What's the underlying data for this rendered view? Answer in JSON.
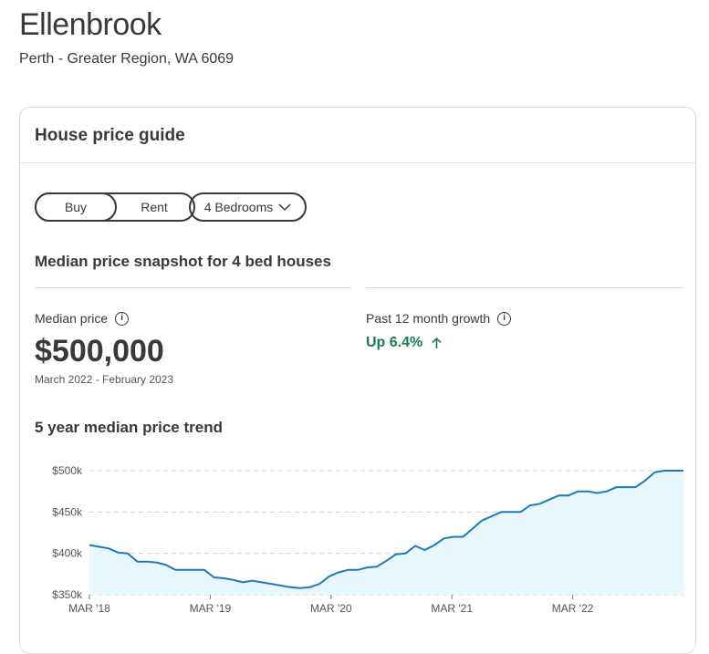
{
  "suburb": {
    "name": "Ellenbrook",
    "region": "Perth - Greater Region, WA 6069"
  },
  "card": {
    "title": "House price guide",
    "toggle": {
      "buy": "Buy",
      "rent": "Rent",
      "selected": "Buy"
    },
    "bedrooms_dropdown": "4 Bedrooms",
    "snapshot_title": "Median price snapshot for 4 bed houses",
    "median": {
      "label": "Median price",
      "value": "$500,000",
      "period": "March 2022 - February 2023"
    },
    "growth": {
      "label": "Past 12 month growth",
      "value": "Up 6.4%"
    },
    "trend_title": "5 year median price trend"
  },
  "colors": {
    "line": "#1a7bb8",
    "area": "#e8f7fb",
    "growth_positive": "#1c7c48",
    "text": "#3b3838"
  },
  "chart_data": {
    "type": "area",
    "ylim": [
      350000,
      500000
    ],
    "y_ticks": [
      {
        "value": 500000,
        "label": "$500k"
      },
      {
        "value": 450000,
        "label": "$450k"
      },
      {
        "value": 400000,
        "label": "$400k"
      },
      {
        "value": 350000,
        "label": "$350k"
      }
    ],
    "x_ticks": [
      {
        "x": 0,
        "label": "MAR '18"
      },
      {
        "x": 12,
        "label": "MAR '19"
      },
      {
        "x": 24,
        "label": "MAR '20"
      },
      {
        "x": 36,
        "label": "MAR '21"
      },
      {
        "x": 48,
        "label": "MAR '22"
      }
    ],
    "x_range": [
      0,
      59
    ],
    "series": [
      {
        "values": [
          410000,
          408000,
          406000,
          401000,
          400000,
          390000,
          390000,
          389000,
          386000,
          380000,
          380000,
          380000,
          380000,
          371000,
          370000,
          368000,
          365000,
          367000,
          365000,
          363000,
          361000,
          359000,
          358000,
          359000,
          363000,
          372000,
          377000,
          380000,
          380000,
          383000,
          384000,
          391000,
          399000,
          400000,
          409000,
          404000,
          410000,
          418000,
          420000,
          420000,
          430000,
          440000,
          445000,
          450000,
          450000,
          450000,
          458000,
          460000,
          465000,
          470000,
          470000,
          475000,
          475000,
          473000,
          475000,
          480000,
          480000,
          480000,
          488000,
          498000,
          500000,
          500000,
          500000
        ]
      }
    ]
  }
}
